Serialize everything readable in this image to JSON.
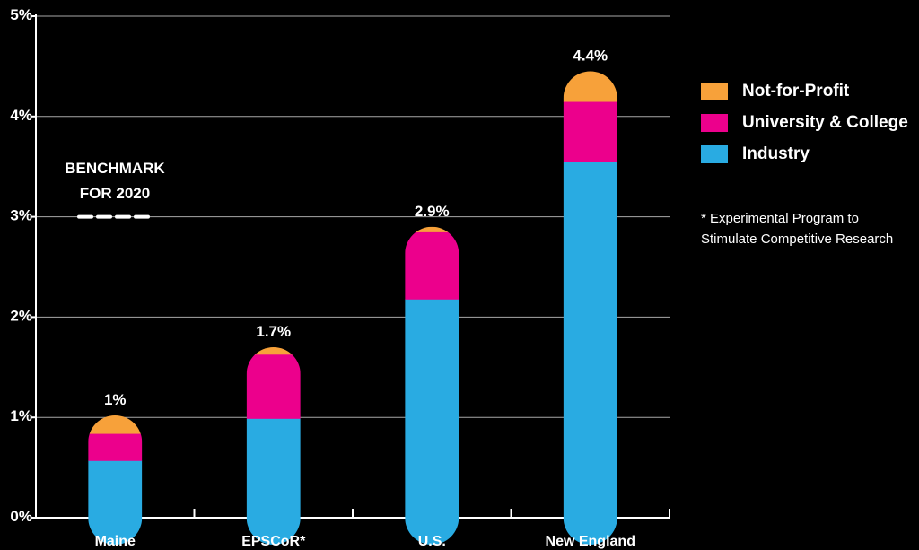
{
  "chart_data": {
    "type": "bar",
    "stacked": true,
    "categories": [
      "Maine",
      "EPSCoR*",
      "U.S.",
      "New England"
    ],
    "series": [
      {
        "name": "Industry",
        "color": "#29ABE2",
        "values": [
          0.57,
          0.99,
          2.18,
          3.55
        ]
      },
      {
        "name": "University & College",
        "color": "#EC008C",
        "values": [
          0.27,
          0.64,
          0.67,
          0.6
        ]
      },
      {
        "name": "Not-for-Profit",
        "color": "#F7A13A",
        "values": [
          0.18,
          0.07,
          0.05,
          0.3
        ]
      }
    ],
    "totals": [
      "1%",
      "1.7%",
      "2.9%",
      "4.4%"
    ],
    "y_ticks": [
      "0%",
      "1%",
      "2%",
      "3%",
      "4%",
      "5%"
    ],
    "ylim": [
      0,
      5
    ],
    "grid": true,
    "benchmark": {
      "label_line1": "BENCHMARK",
      "label_line2": "FOR 2020",
      "value": 3
    },
    "legend_position": "right"
  },
  "legend": [
    {
      "label": "Not-for-Profit",
      "color": "#F7A13A"
    },
    {
      "label": "University & College",
      "color": "#EC008C"
    },
    {
      "label": "Industry",
      "color": "#29ABE2"
    }
  ],
  "footnote": {
    "line1": "* Experimental Program to",
    "line2": "Stimulate Competitive Research"
  }
}
